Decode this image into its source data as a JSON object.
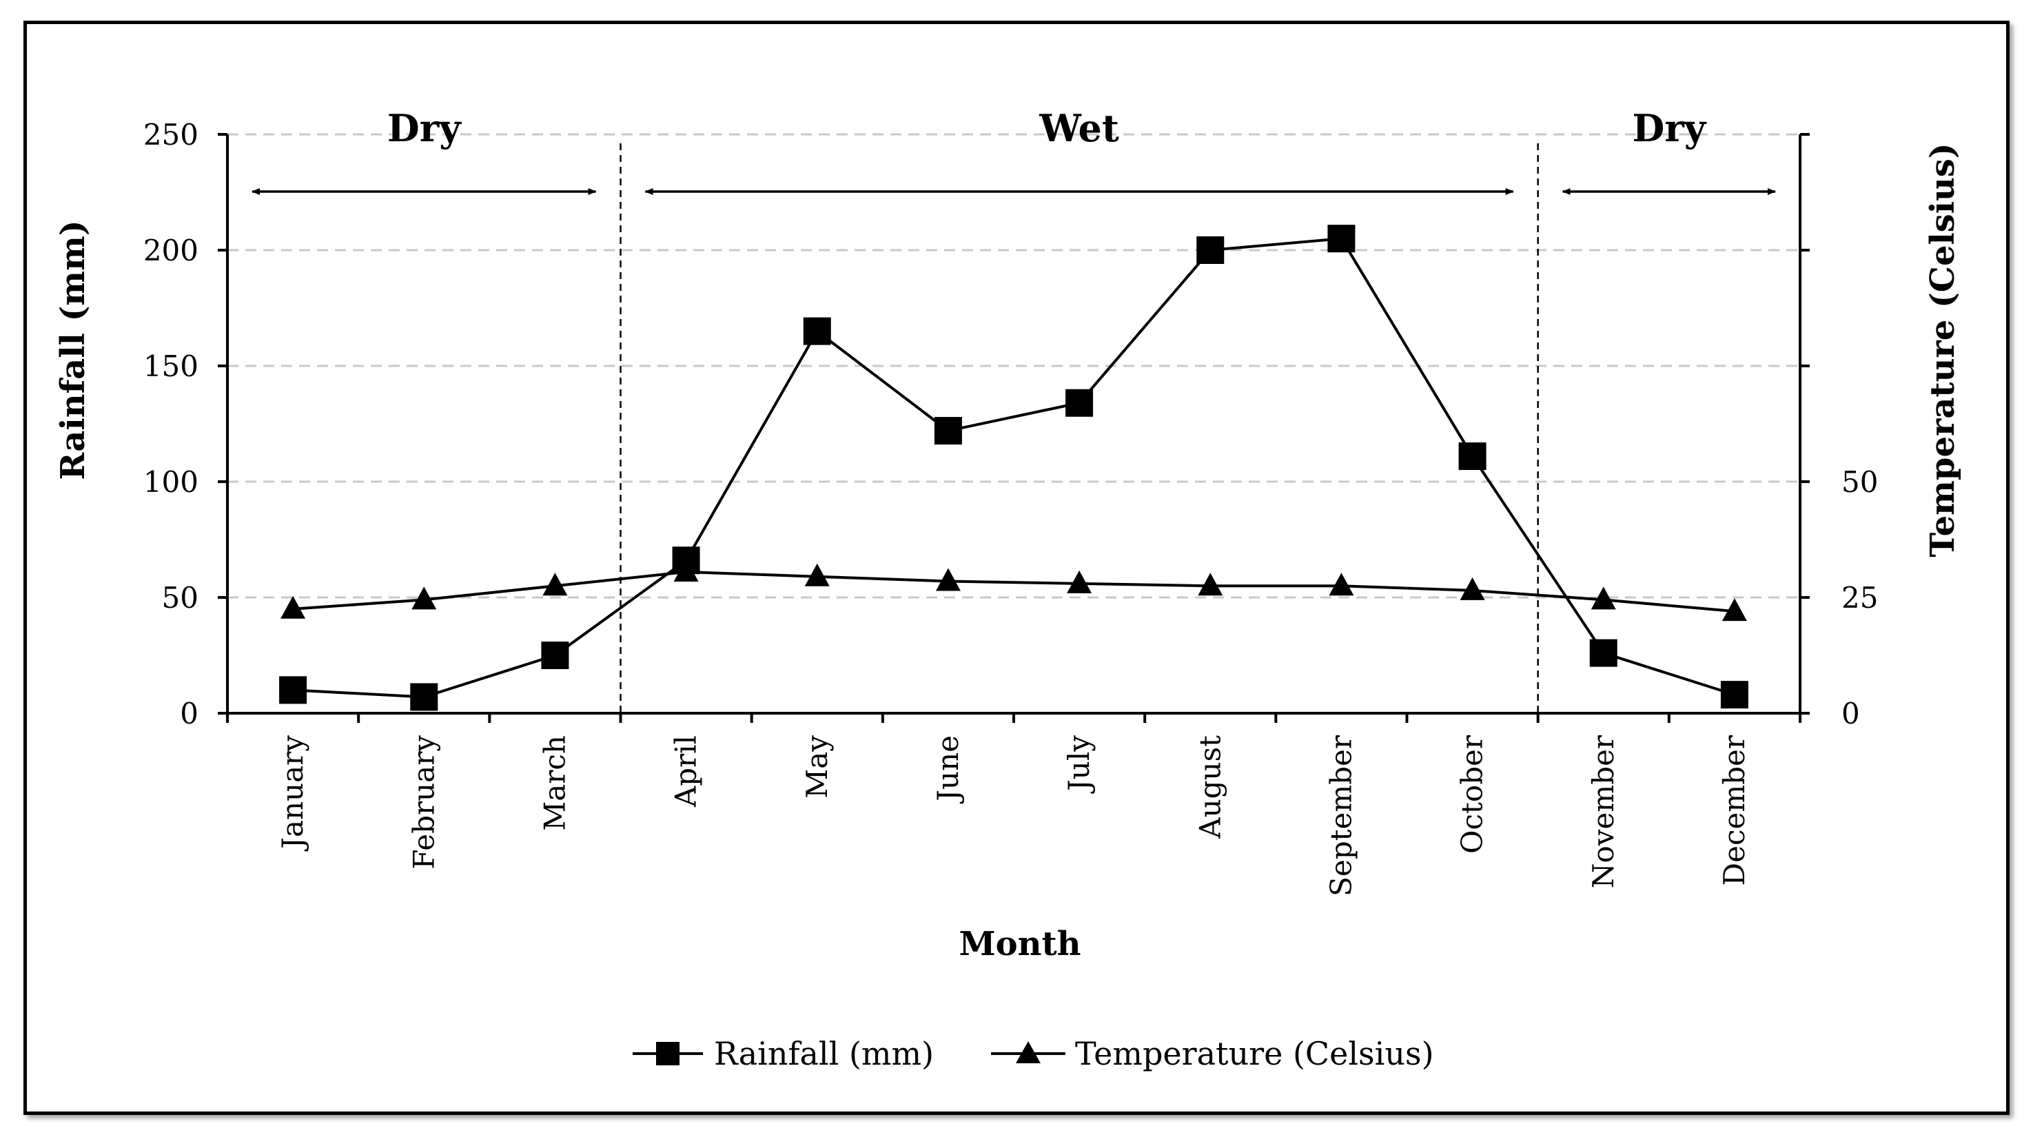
{
  "chart_data": {
    "type": "line",
    "xlabel": "Month",
    "ylabel": "Rainfall (mm)",
    "y2label": "Temperature (Celsius)",
    "ylim": [
      0,
      250
    ],
    "y2lim": [
      0,
      125
    ],
    "yticks": [
      0,
      50,
      100,
      150,
      200,
      250
    ],
    "y2ticks": [
      0,
      25,
      50
    ],
    "grid": true,
    "legend_position": "bottom",
    "categories": [
      "January",
      "February",
      "March",
      "April",
      "May",
      "June",
      "July",
      "August",
      "September",
      "October",
      "November",
      "December"
    ],
    "series": [
      {
        "name": "Rainfall (mm)",
        "axis": "left",
        "marker": "square",
        "values": [
          10,
          7,
          25,
          66,
          165,
          122,
          134,
          200,
          205,
          111,
          26,
          8
        ]
      },
      {
        "name": "Temperature (Celsius)",
        "axis": "right",
        "marker": "triangle",
        "values": [
          22.5,
          24.5,
          27.5,
          30.5,
          29.5,
          28.5,
          28,
          27.5,
          27.5,
          26.5,
          24.5,
          22
        ]
      }
    ],
    "periods": [
      {
        "label": "Dry",
        "start_month": "January",
        "end_month": "March"
      },
      {
        "label": "Wet",
        "start_month": "April",
        "end_month": "October"
      },
      {
        "label": "Dry",
        "start_month": "November",
        "end_month": "December"
      }
    ]
  }
}
